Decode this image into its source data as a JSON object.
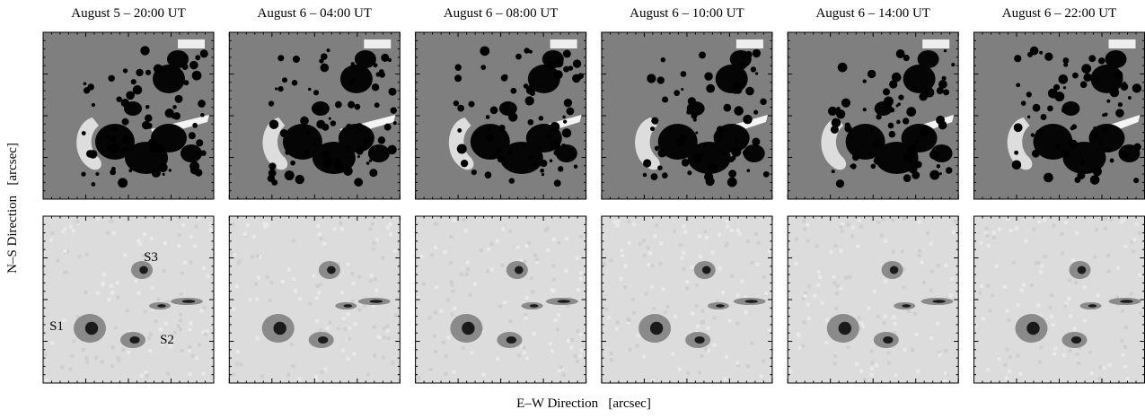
{
  "figure": {
    "column_titles": [
      "August 5 – 20:00 UT",
      "August 6 – 04:00 UT",
      "August 6 – 08:00 UT",
      "August 6 – 10:00 UT",
      "August 6 – 14:00 UT",
      "August 6 – 22:00 UT"
    ],
    "y_label": "N–S Direction   [arcsec]",
    "x_label": "E–W Direction   [arcsec]",
    "spot_labels": [
      "S1",
      "S2",
      "S3"
    ]
  }
}
